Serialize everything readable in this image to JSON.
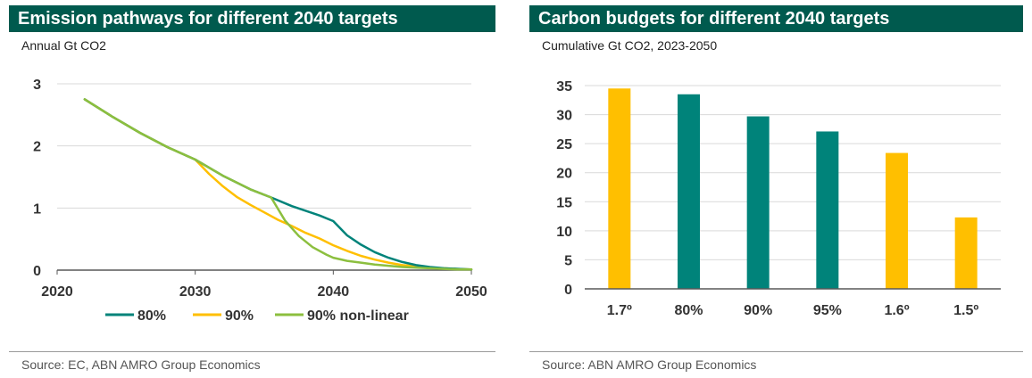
{
  "left": {
    "title": "Emission pathways for different 2040 targets",
    "subtitle": "Annual Gt CO2",
    "source": "Source: EC, ABN AMRO Group Economics"
  },
  "right": {
    "title": "Carbon budgets for different 2040 targets",
    "subtitle": "Cumulative Gt CO2, 2023-2050",
    "source": "Source: ABN AMRO Group Economics"
  },
  "chart_data": [
    {
      "type": "line",
      "title": "Emission pathways for different 2040 targets",
      "ylabel": "Annual Gt CO2",
      "xlim": [
        2020,
        2050
      ],
      "ylim": [
        0,
        3
      ],
      "xticks": [
        2020,
        2030,
        2040,
        2050
      ],
      "yticks": [
        0,
        1,
        2,
        3
      ],
      "grid": true,
      "legend": "bottom",
      "series": [
        {
          "name": "80%",
          "color": "#00837a",
          "x": [
            2022,
            2024,
            2026,
            2028,
            2030,
            2032,
            2034,
            2035.5,
            2037,
            2039,
            2040,
            2041,
            2042,
            2043,
            2044,
            2045,
            2046,
            2047,
            2048,
            2049,
            2050
          ],
          "y": [
            2.75,
            2.47,
            2.21,
            1.98,
            1.78,
            1.52,
            1.3,
            1.17,
            1.03,
            0.88,
            0.79,
            0.56,
            0.41,
            0.29,
            0.2,
            0.13,
            0.08,
            0.05,
            0.03,
            0.02,
            0.01
          ]
        },
        {
          "name": "90%",
          "color": "#ffbf00",
          "x": [
            2022,
            2024,
            2026,
            2028,
            2030,
            2031,
            2032,
            2033,
            2034,
            2035,
            2036,
            2037,
            2038,
            2039,
            2040,
            2041,
            2042,
            2043,
            2044,
            2045,
            2046,
            2047,
            2048,
            2049,
            2050
          ],
          "y": [
            2.75,
            2.47,
            2.21,
            1.98,
            1.78,
            1.55,
            1.35,
            1.18,
            1.05,
            0.93,
            0.81,
            0.71,
            0.6,
            0.51,
            0.4,
            0.31,
            0.23,
            0.17,
            0.12,
            0.08,
            0.06,
            0.04,
            0.03,
            0.02,
            0.01
          ]
        },
        {
          "name": "90% non-linear",
          "color": "#8cbf3f",
          "x": [
            2022,
            2024,
            2026,
            2028,
            2030,
            2032,
            2034,
            2035.5,
            2036.5,
            2037.5,
            2038.5,
            2039.5,
            2040,
            2041,
            2042,
            2043,
            2044,
            2045,
            2046,
            2047,
            2048,
            2049,
            2050
          ],
          "y": [
            2.75,
            2.47,
            2.21,
            1.98,
            1.78,
            1.52,
            1.3,
            1.17,
            0.8,
            0.55,
            0.37,
            0.25,
            0.2,
            0.15,
            0.12,
            0.09,
            0.07,
            0.05,
            0.04,
            0.03,
            0.02,
            0.01,
            0.01
          ]
        }
      ]
    },
    {
      "type": "bar",
      "title": "Carbon budgets for different 2040 targets",
      "ylabel": "Cumulative Gt CO2, 2023-2050",
      "categories": [
        "1.7º",
        "80%",
        "90%",
        "95%",
        "1.6º",
        "1.5º"
      ],
      "values": [
        34.5,
        33.5,
        29.7,
        27.1,
        23.4,
        12.3
      ],
      "colors": [
        "#ffbf00",
        "#00837a",
        "#00837a",
        "#00837a",
        "#ffbf00",
        "#ffbf00"
      ],
      "ylim": [
        0,
        35
      ],
      "yticks": [
        0,
        5,
        10,
        15,
        20,
        25,
        30,
        35
      ],
      "grid": true
    }
  ]
}
